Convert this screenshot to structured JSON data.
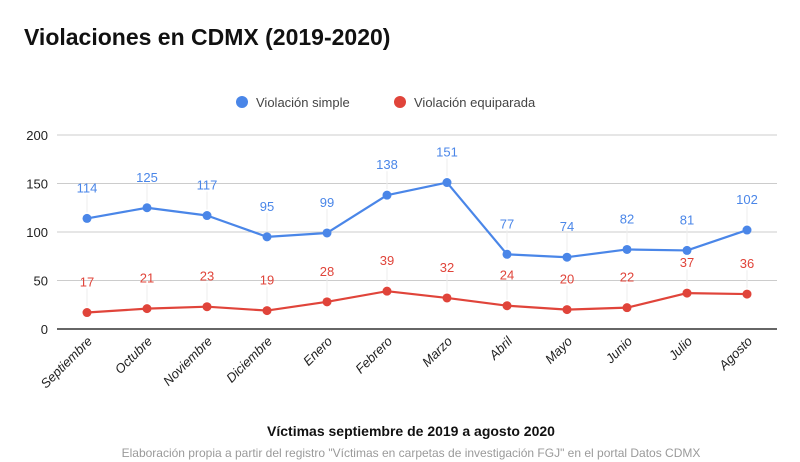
{
  "chart_data": {
    "type": "line",
    "title": "Violaciones en CDMX (2019-2020)",
    "xlabel": "Víctimas septiembre de 2019 a agosto 2020",
    "ylabel": "",
    "source_note": "Elaboración propia a partir del registro \"Víctimas en carpetas de investigación FGJ\" en el portal Datos CDMX",
    "categories": [
      "Septiembre",
      "Octubre",
      "Noviembre",
      "Diciembre",
      "Enero",
      "Febrero",
      "Marzo",
      "Abril",
      "Mayo",
      "Junio",
      "Julio",
      "Agosto"
    ],
    "series": [
      {
        "name": "Violación simple",
        "color": "#4a86e8",
        "values": [
          114,
          125,
          117,
          95,
          99,
          138,
          151,
          77,
          74,
          82,
          81,
          102
        ]
      },
      {
        "name": "Violación equiparada",
        "color": "#e0443a",
        "values": [
          17,
          21,
          23,
          19,
          28,
          39,
          32,
          24,
          20,
          22,
          37,
          36
        ]
      }
    ],
    "ylim": [
      0,
      200
    ],
    "yticks": [
      0,
      50,
      100,
      150,
      200
    ],
    "grid": true,
    "legend_position": "top-center",
    "data_labels": true
  }
}
